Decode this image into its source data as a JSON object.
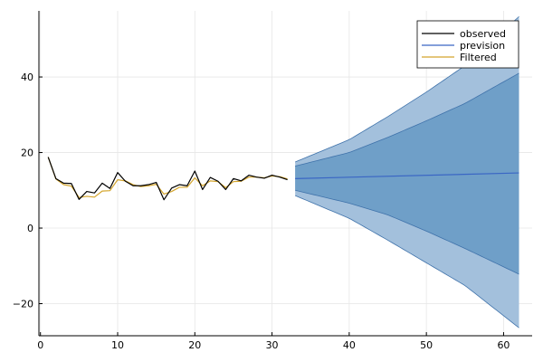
{
  "chart_data": {
    "type": "line",
    "title": "",
    "xlabel": "",
    "ylabel": "",
    "xlim": [
      -0.2,
      63.7
    ],
    "ylim": [
      -28.5,
      57.5
    ],
    "xticks": [
      0,
      10,
      20,
      30,
      40,
      50,
      60
    ],
    "yticks": [
      -20,
      0,
      20,
      40
    ],
    "grid": true,
    "legend_position": "top-right",
    "legend": [
      "observed",
      "prevision",
      "Filtered"
    ],
    "colors": {
      "observed": "#000000",
      "prevision": "#3a66c4",
      "filtered": "#d4a52c",
      "band_outer": "#a3c0dc",
      "band_inner": "#6f9fc8",
      "band_edge": "#3f72aa"
    },
    "series": [
      {
        "name": "observed",
        "x": [
          1,
          2,
          3,
          4,
          5,
          6,
          7,
          8,
          9,
          10,
          11,
          12,
          13,
          14,
          15,
          16,
          17,
          18,
          19,
          20,
          21,
          22,
          23,
          24,
          25,
          26,
          27,
          28,
          29,
          30,
          31,
          32
        ],
        "values": [
          18.8,
          13.1,
          11.9,
          11.8,
          7.6,
          9.7,
          9.3,
          11.9,
          10.5,
          14.7,
          12.4,
          11.2,
          11.2,
          11.5,
          12.1,
          7.5,
          10.6,
          11.5,
          11.2,
          15.1,
          10.2,
          13.4,
          12.4,
          10.2,
          13.1,
          12.5,
          14.0,
          13.5,
          13.2,
          14.0,
          13.5,
          12.8
        ]
      },
      {
        "name": "Filtered",
        "x": [
          1,
          2,
          3,
          4,
          5,
          6,
          7,
          8,
          9,
          10,
          11,
          12,
          13,
          14,
          15,
          16,
          17,
          18,
          19,
          20,
          21,
          22,
          23,
          24,
          25,
          26,
          27,
          28,
          29,
          30,
          31,
          32
        ],
        "values": [
          18.8,
          13.0,
          11.5,
          11.1,
          8.1,
          8.4,
          8.2,
          9.8,
          9.9,
          12.8,
          12.5,
          11.5,
          11.0,
          11.2,
          11.6,
          9.0,
          9.7,
          10.8,
          10.8,
          13.3,
          11.2,
          12.5,
          12.3,
          10.7,
          12.3,
          12.4,
          13.5,
          13.5,
          13.3,
          13.8,
          13.6,
          13.0
        ]
      },
      {
        "name": "prevision",
        "x": [
          33,
          62
        ],
        "values": [
          13.1,
          14.6
        ]
      }
    ],
    "bands": [
      {
        "level": "outer",
        "x": [
          33,
          40,
          45,
          50,
          55,
          62
        ],
        "lower": [
          8.6,
          2.6,
          -3.2,
          -9.2,
          -15.2,
          -26.4
        ],
        "upper": [
          17.5,
          23.4,
          29.5,
          36.0,
          43.0,
          56.0
        ]
      },
      {
        "level": "inner",
        "x": [
          33,
          40,
          45,
          50,
          55,
          62
        ],
        "lower": [
          10.0,
          6.6,
          3.5,
          -0.8,
          -5.4,
          -12.2
        ],
        "upper": [
          16.4,
          20.0,
          24.0,
          28.4,
          33.0,
          41.0
        ]
      }
    ]
  }
}
